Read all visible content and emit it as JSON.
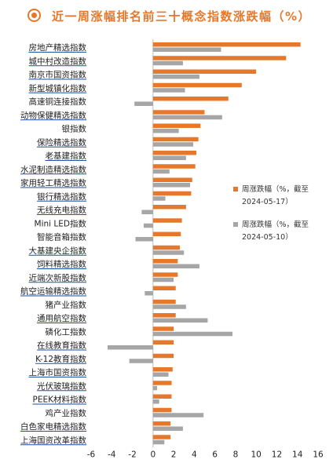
{
  "title": "近一周涨幅排名前三十概念指数涨跌幅（%）",
  "colors": {
    "accent": "#e5782a",
    "s1": "#e5782a",
    "s2": "#a6a6a6",
    "link": "#1a52a5"
  },
  "chart_data": {
    "type": "bar",
    "orientation": "horizontal",
    "categories": [
      "房地产精选指数",
      "城中村改造指数",
      "南京市国资指数",
      "新型城镇化指数",
      "高速铜连接指数",
      "动物保健精选指数",
      "银指数",
      "保险精选指数",
      "老基建指数",
      "水泥制造精选指数",
      "家用轻工精选指数",
      "银行精选指数",
      "无线充电指数",
      "Mini LED指数",
      "智能音箱指数",
      "大基建央企指数",
      "饲料精选指数",
      "近端次新股指数",
      "航空运输精选指数",
      "猪产业指数",
      "通用航空指数",
      "磷化工指数",
      "在线教育指数",
      "K-12教育指数",
      "上海市国资指数",
      "光伏玻璃指数",
      "PEEK材料指数",
      "鸡产业指数",
      "白色家电精选指数",
      "上海国资改革指数"
    ],
    "underlined": [
      true,
      true,
      true,
      true,
      false,
      true,
      false,
      true,
      true,
      true,
      true,
      true,
      true,
      false,
      false,
      true,
      true,
      true,
      true,
      false,
      true,
      false,
      true,
      true,
      true,
      true,
      true,
      false,
      true,
      true
    ],
    "series": [
      {
        "name": "周涨跌幅（%，截至 2024-05-17）",
        "values": [
          14.3,
          12.9,
          10.0,
          8.6,
          7.3,
          5.0,
          4.6,
          4.4,
          4.2,
          4.1,
          3.8,
          3.7,
          3.2,
          2.8,
          2.7,
          2.6,
          2.4,
          2.4,
          2.2,
          2.2,
          2.2,
          2.0,
          2.0,
          2.0,
          1.9,
          1.8,
          1.8,
          1.8,
          1.7,
          1.7
        ]
      },
      {
        "name": "周涨跌幅（%，截至 2024-05-10）",
        "values": [
          6.6,
          2.9,
          4.5,
          3.1,
          -1.8,
          6.7,
          2.5,
          3.9,
          3.2,
          1.6,
          3.6,
          1.2,
          -1.1,
          -0.9,
          -1.7,
          3.0,
          4.5,
          2.0,
          -0.8,
          3.2,
          5.3,
          7.7,
          -4.4,
          -2.3,
          1.5,
          0.4,
          0.6,
          4.9,
          2.9,
          1.1
        ]
      }
    ],
    "legend": [
      {
        "line1": "周涨跌幅（%，截至",
        "line2": "2024-05-17）"
      },
      {
        "line1": "周涨跌幅（%，截至",
        "line2": "2024-05-10）"
      }
    ],
    "xlim": [
      -6,
      16
    ],
    "xticks": [
      -6,
      -4,
      -2,
      0,
      2,
      4,
      6,
      8,
      10,
      12,
      14,
      16
    ],
    "legend_position": "right-middle",
    "grid": false
  }
}
